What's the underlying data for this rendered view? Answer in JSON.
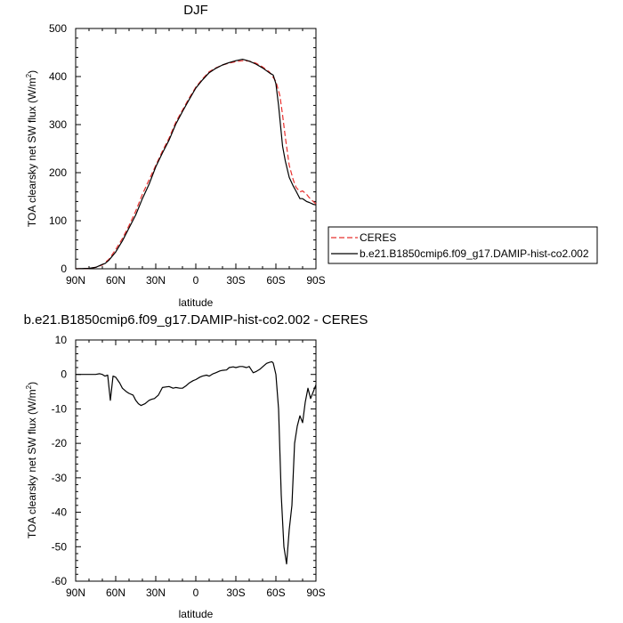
{
  "chart_data": [
    {
      "type": "line",
      "title": "DJF",
      "xlabel": "latitude",
      "ylabel": "TOA clearsky net SW flux (W/m²)",
      "xlim": [
        90,
        -90
      ],
      "ylim": [
        0,
        500
      ],
      "x_ticks": [
        90,
        60,
        30,
        0,
        -30,
        -60,
        -90
      ],
      "x_tick_labels": [
        "90N",
        "60N",
        "30N",
        "0",
        "30S",
        "60S",
        "90S"
      ],
      "y_ticks": [
        0,
        100,
        200,
        300,
        400,
        500
      ],
      "y_tick_labels": [
        "0",
        "100",
        "200",
        "300",
        "400",
        "500"
      ],
      "legend": "right",
      "series": [
        {
          "name": "CERES",
          "color": "#e8302e",
          "dash": "dashed",
          "x": [
            90,
            80,
            75,
            70,
            65,
            60,
            55,
            50,
            45,
            40,
            35,
            30,
            25,
            20,
            15,
            10,
            5,
            0,
            -5,
            -10,
            -15,
            -20,
            -25,
            -30,
            -35,
            -40,
            -45,
            -50,
            -55,
            -60,
            -63,
            -65,
            -67,
            -70,
            -73,
            -75,
            -78,
            -80,
            -83,
            -85,
            -88,
            -90
          ],
          "y": [
            0,
            1,
            3,
            8,
            20,
            40,
            63,
            90,
            120,
            155,
            185,
            215,
            245,
            272,
            305,
            330,
            355,
            378,
            395,
            410,
            418,
            424,
            428,
            431,
            433,
            432,
            428,
            420,
            410,
            390,
            360,
            320,
            275,
            215,
            185,
            170,
            160,
            162,
            155,
            148,
            140,
            135
          ]
        },
        {
          "name": "b.e21.B1850cmip6.f09_g17.DAMIP-hist-co2.002",
          "color": "#000000",
          "dash": "solid",
          "x": [
            90,
            80,
            75,
            70,
            68,
            65,
            60,
            55,
            50,
            45,
            40,
            35,
            30,
            25,
            20,
            15,
            10,
            5,
            0,
            -5,
            -10,
            -15,
            -20,
            -25,
            -30,
            -35,
            -40,
            -45,
            -50,
            -55,
            -58,
            -60,
            -62,
            -65,
            -67,
            -70,
            -73,
            -75,
            -78,
            -80,
            -83,
            -85,
            -88,
            -90
          ],
          "y": [
            0,
            1,
            3,
            9,
            11,
            18,
            35,
            58,
            85,
            112,
            146,
            176,
            212,
            241,
            268,
            301,
            327,
            352,
            376,
            393,
            408,
            417,
            424,
            429,
            433,
            436,
            432,
            426,
            418,
            408,
            403,
            385,
            340,
            255,
            225,
            190,
            172,
            162,
            146,
            146,
            140,
            138,
            134,
            133
          ]
        }
      ]
    },
    {
      "type": "line",
      "title": "b.e21.B1850cmip6.f09_g17.DAMIP-hist-co2.002 - CERES",
      "xlabel": "latitude",
      "ylabel": "TOA clearsky net SW flux (W/m²)",
      "xlim": [
        90,
        -90
      ],
      "ylim": [
        -60,
        10
      ],
      "x_ticks": [
        90,
        60,
        30,
        0,
        -30,
        -60,
        -90
      ],
      "x_tick_labels": [
        "90N",
        "60N",
        "30N",
        "0",
        "30S",
        "60S",
        "90S"
      ],
      "y_ticks": [
        10,
        0,
        -10,
        -20,
        -30,
        -40,
        -50,
        -60
      ],
      "y_tick_labels": [
        "10",
        "0",
        "-10",
        "-20",
        "-30",
        "-40",
        "-50",
        "-60"
      ],
      "series": [
        {
          "color": "#000000",
          "dash": "solid",
          "x": [
            90,
            80,
            75,
            72,
            70,
            68,
            66,
            64,
            62,
            60,
            57,
            55,
            52,
            50,
            47,
            45,
            43,
            41,
            38,
            35,
            33,
            31,
            28,
            25,
            22,
            20,
            17,
            15,
            12,
            10,
            7,
            5,
            2,
            0,
            -3,
            -5,
            -8,
            -10,
            -13,
            -15,
            -18,
            -20,
            -23,
            -25,
            -28,
            -30,
            -33,
            -35,
            -38,
            -40,
            -43,
            -45,
            -48,
            -50,
            -53,
            -55,
            -57,
            -58,
            -60,
            -62,
            -64,
            -66,
            -68,
            -70,
            -72,
            -74,
            -76,
            -78,
            -80,
            -82,
            -84,
            -86,
            -88,
            -90
          ],
          "y": [
            0,
            0,
            0,
            0.2,
            0,
            -0.5,
            -0.2,
            -7.5,
            -0.5,
            -0.8,
            -2.5,
            -4,
            -5,
            -5.5,
            -6,
            -7.5,
            -8.5,
            -9,
            -8.5,
            -7.5,
            -7.2,
            -7,
            -6,
            -3.8,
            -3.6,
            -3.5,
            -4,
            -3.8,
            -4,
            -4,
            -3.2,
            -2.5,
            -1.8,
            -1.5,
            -0.8,
            -0.5,
            -0.2,
            -0.5,
            0.2,
            0.5,
            1,
            1.2,
            1.3,
            2,
            2.2,
            2,
            2.3,
            2.3,
            2,
            2.3,
            0.5,
            0.8,
            1.5,
            2.2,
            3.2,
            3.5,
            3.7,
            3.3,
            0,
            -10,
            -35,
            -50,
            -55,
            -45,
            -38,
            -20,
            -15,
            -12,
            -14,
            -8,
            -4,
            -7,
            -5,
            -3
          ]
        }
      ]
    }
  ]
}
